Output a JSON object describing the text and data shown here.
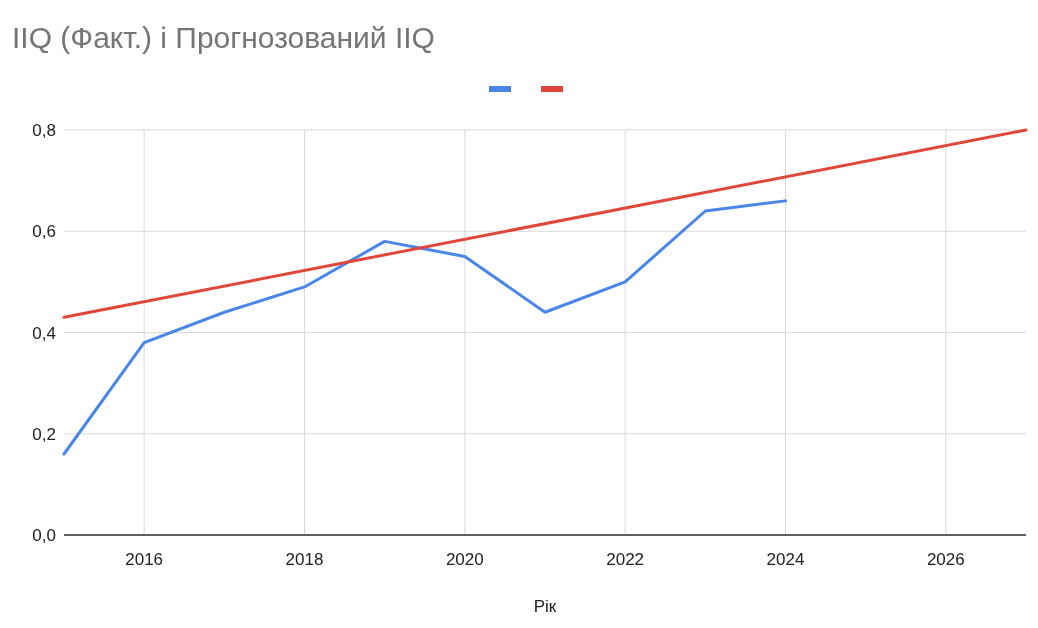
{
  "chart_data": {
    "type": "line",
    "title": "IIQ (Факт.) і Прогнозований IIQ",
    "xlabel": "Рік",
    "series": [
      {
        "color": "#4a86e8",
        "x": [
          2015,
          2016,
          2017,
          2018,
          2019,
          2020,
          2021,
          2022,
          2023,
          2024
        ],
        "values": [
          0.16,
          0.38,
          0.44,
          0.49,
          0.58,
          0.55,
          0.44,
          0.5,
          0.64,
          0.66
        ]
      },
      {
        "color": "#e0463a",
        "x": [
          2015,
          2027
        ],
        "values": [
          0.43,
          0.8
        ]
      }
    ],
    "xlim": [
      2015,
      2027
    ],
    "xticks": [
      2016,
      2018,
      2020,
      2022,
      2024,
      2026
    ],
    "ylim": [
      0,
      0.8
    ],
    "yticks": [
      {
        "value": 0,
        "label": "0,0"
      },
      {
        "value": 0.2,
        "label": "0,2"
      },
      {
        "value": 0.4,
        "label": "0,4"
      },
      {
        "value": 0.6,
        "label": "0,6"
      },
      {
        "value": 0.8,
        "label": "0,8"
      }
    ],
    "grid": true,
    "marker": "none",
    "line_style": "solid"
  }
}
